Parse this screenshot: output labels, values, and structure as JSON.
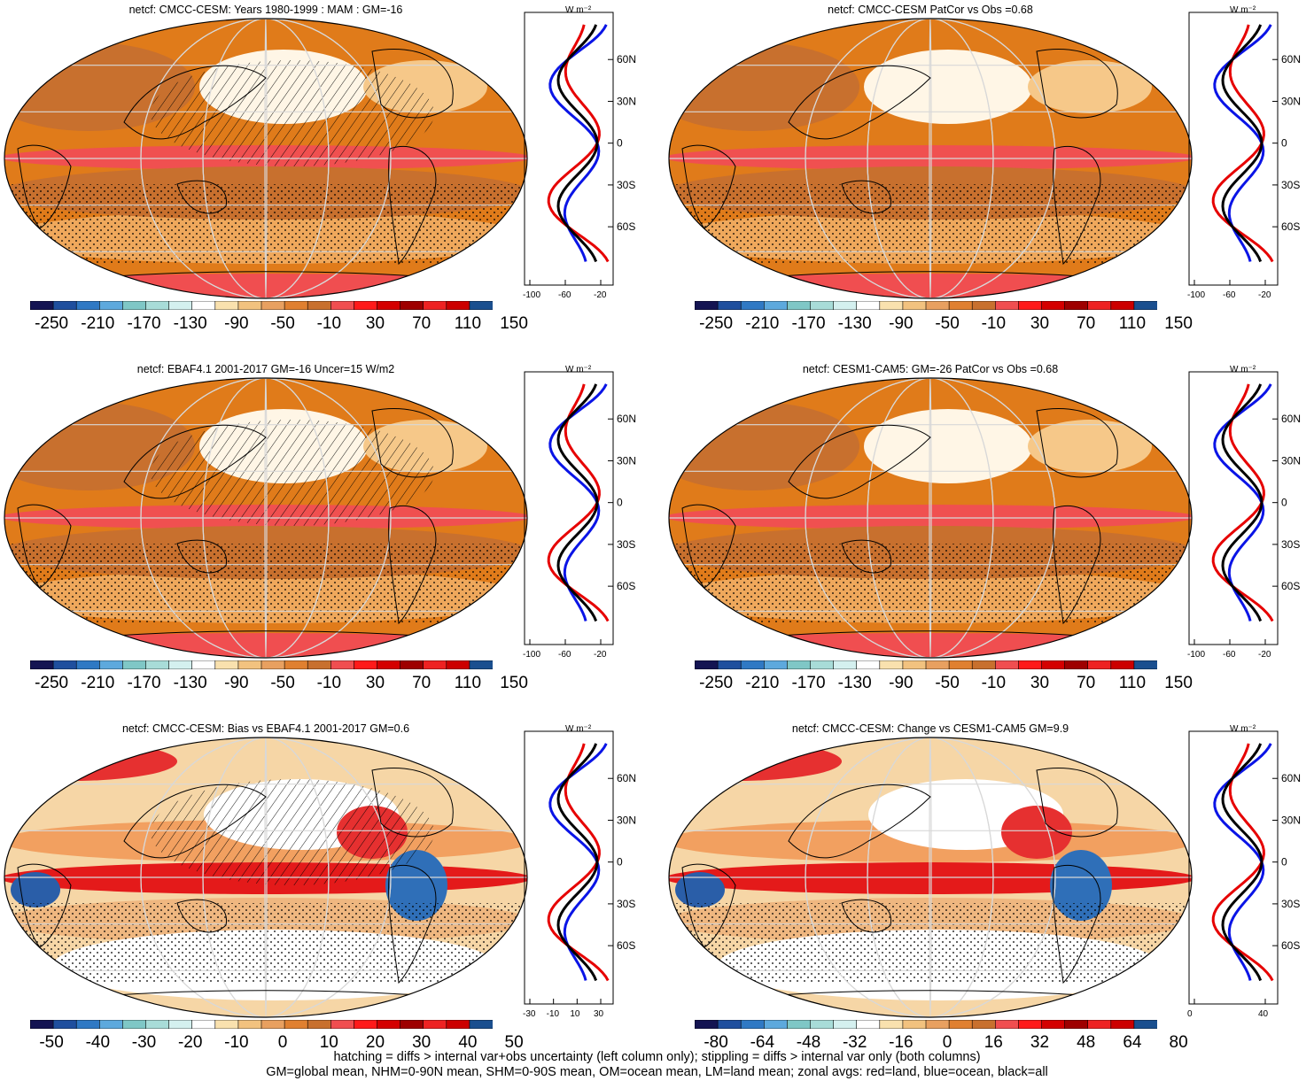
{
  "colors": {
    "land_line": "#000000",
    "zonal_land": "#e60000",
    "zonal_ocean": "#0a14e6",
    "zonal_all": "#000000",
    "grid": "#d8d8d8",
    "colorbar": [
      "#141452",
      "#1f4f9e",
      "#2f79c4",
      "#5da9dd",
      "#7fc7c6",
      "#a8dcd8",
      "#d4f0ef",
      "#ffffff",
      "#f9e1ae",
      "#f2c27f",
      "#e8a060",
      "#e08030",
      "#c8702e",
      "#f04e50",
      "#ff1a1a",
      "#d40000",
      "#9e0000",
      "#ee2222",
      "#cc0000",
      "#1a4f8f"
    ]
  },
  "panels": [
    {
      "id": "p1",
      "title": "netcf: CMCC-CESM: Years 1980-1999 : MAM : GM=-16",
      "colorbar_labels": [
        "-250",
        "-210",
        "-170",
        "-130",
        "-90",
        "-50",
        "-10",
        "30",
        "70",
        "110",
        "150"
      ],
      "units": "W m⁻²",
      "zonal_xticks": [
        "-100",
        "-60",
        "-20"
      ],
      "lat_labels": [
        "60N",
        "30N",
        "0",
        "30S",
        "60S"
      ],
      "palette": "abs",
      "pattern": "hatch"
    },
    {
      "id": "p2",
      "title": "netcf: CMCC-CESM PatCor vs Obs =0.68",
      "colorbar_labels": [
        "-250",
        "-210",
        "-170",
        "-130",
        "-90",
        "-50",
        "-10",
        "30",
        "70",
        "110",
        "150"
      ],
      "units": "W m⁻²",
      "zonal_xticks": [
        "-100",
        "-60",
        "-20"
      ],
      "lat_labels": [
        "60N",
        "30N",
        "0",
        "30S",
        "60S"
      ],
      "palette": "abs",
      "pattern": "stipple"
    },
    {
      "id": "p3",
      "title": "netcf: EBAF4.1 2001-2017 GM=-16 Uncer=15 W/m2",
      "colorbar_labels": [
        "-250",
        "-210",
        "-170",
        "-130",
        "-90",
        "-50",
        "-10",
        "30",
        "70",
        "110",
        "150"
      ],
      "units": "W m⁻²",
      "zonal_xticks": [
        "-100",
        "-60",
        "-20"
      ],
      "lat_labels": [
        "60N",
        "30N",
        "0",
        "30S",
        "60S"
      ],
      "palette": "abs",
      "pattern": "hatch"
    },
    {
      "id": "p4",
      "title": "netcf: CESM1-CAM5: GM=-26 PatCor vs Obs =0.68",
      "colorbar_labels": [
        "-250",
        "-210",
        "-170",
        "-130",
        "-90",
        "-50",
        "-10",
        "30",
        "70",
        "110",
        "150"
      ],
      "units": "W m⁻²",
      "zonal_xticks": [
        "-100",
        "-60",
        "-20"
      ],
      "lat_labels": [
        "60N",
        "30N",
        "0",
        "30S",
        "60S"
      ],
      "palette": "abs",
      "pattern": "stipple"
    },
    {
      "id": "p5",
      "title": "netcf: CMCC-CESM: Bias vs EBAF4.1 2001-2017 GM=0.6",
      "colorbar_labels": [
        "-50",
        "-40",
        "-30",
        "-20",
        "-10",
        "0",
        "10",
        "20",
        "30",
        "40",
        "50"
      ],
      "units": "W m⁻²",
      "zonal_xticks": [
        "-30",
        "-10",
        "10",
        "30"
      ],
      "lat_labels": [
        "60N",
        "30N",
        "0",
        "30S",
        "60S"
      ],
      "palette": "diff",
      "pattern": "hatch"
    },
    {
      "id": "p6",
      "title": "netcf: CMCC-CESM: Change vs CESM1-CAM5 GM=9.9",
      "colorbar_labels": [
        "-80",
        "-64",
        "-48",
        "-32",
        "-16",
        "0",
        "16",
        "32",
        "48",
        "64",
        "80"
      ],
      "units": "W m⁻²",
      "zonal_xticks": [
        "0",
        "40"
      ],
      "lat_labels": [
        "60N",
        "30N",
        "0",
        "30S",
        "60S"
      ],
      "palette": "diff",
      "pattern": "stipple"
    }
  ],
  "footer": {
    "line1": "hatching = diffs > internal var+obs uncertainty (left column only); stippling = diffs > internal var only (both columns)",
    "line2": "GM=global mean, NHM=0-90N mean, SHM=0-90S mean, OM=ocean mean, LM=land mean; zonal avgs: red=land, blue=ocean, black=all"
  }
}
